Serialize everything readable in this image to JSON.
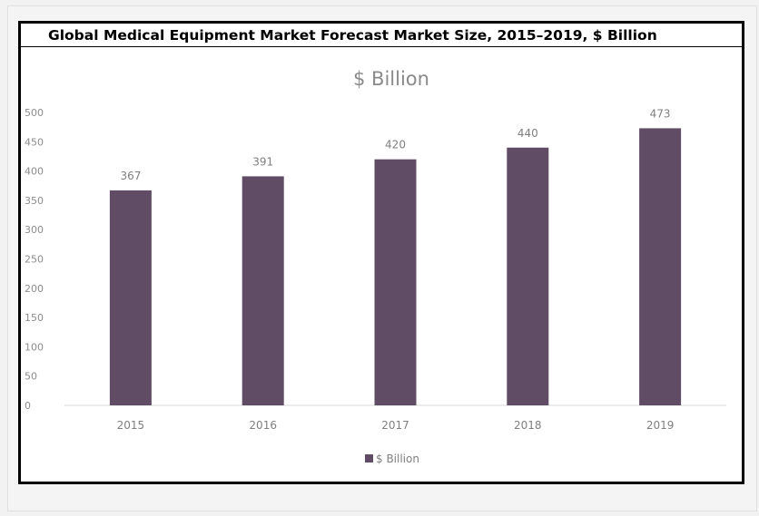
{
  "header": {
    "title": "Global Medical Equipment Market Forecast Market Size, 2015–2019, $ Billion"
  },
  "chart_data": {
    "type": "bar",
    "title": "$ Billion",
    "categories": [
      "2015",
      "2016",
      "2017",
      "2018",
      "2019"
    ],
    "series": [
      {
        "name": "$ Billion",
        "values": [
          367,
          391,
          420,
          440,
          473
        ]
      }
    ],
    "data_labels": [
      "367",
      "391",
      "420",
      "440",
      "473"
    ],
    "y_ticks": [
      "0",
      "50",
      "100",
      "150",
      "200",
      "250",
      "300",
      "350",
      "400",
      "450",
      "500"
    ],
    "ylim": [
      0,
      500
    ],
    "xlabel": "",
    "ylabel": "",
    "grid": false,
    "legend_position": "bottom",
    "bar_color": "#614c65"
  }
}
